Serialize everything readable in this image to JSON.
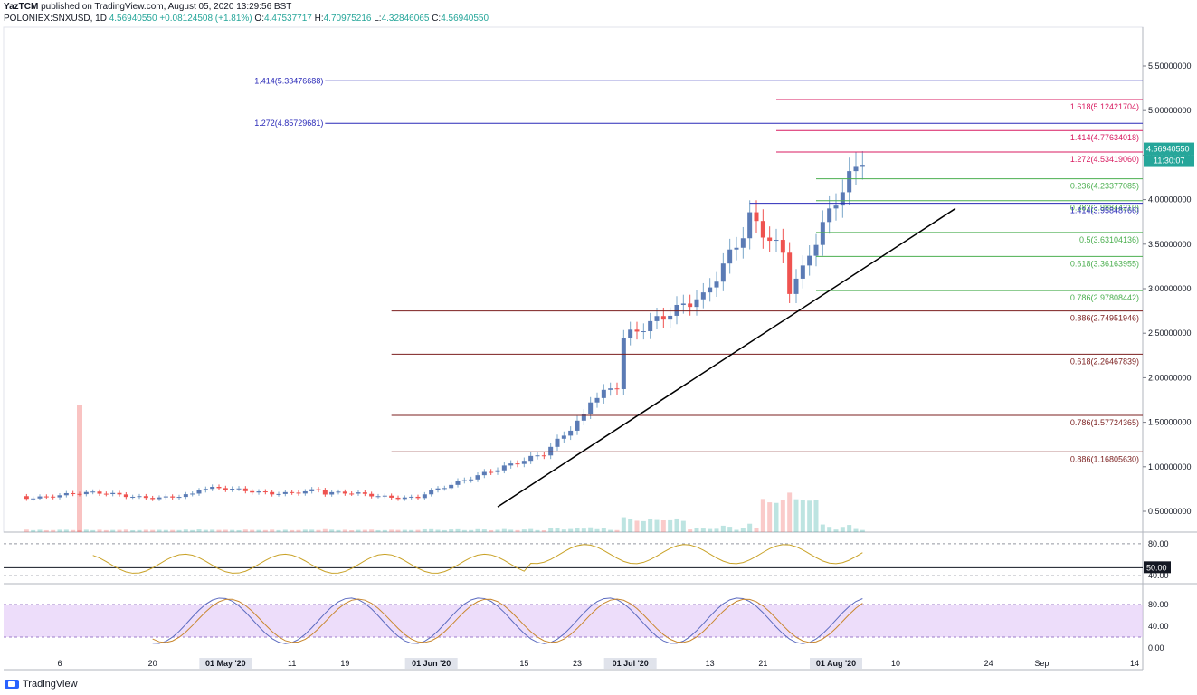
{
  "header": {
    "author": "YazTCM",
    "published": "published on TradingView.com, August 05, 2020 13:29:56 BST",
    "symbol": "POLONIEX:SNXUSD, 1D",
    "last": "4.56940550",
    "change": "+0.08124508 (+1.81%)",
    "o_label": "O:",
    "o": "4.47537717",
    "h_label": "H:",
    "h": "4.70975216",
    "l_label": "L:",
    "l": "4.32846065",
    "c_label": "C:",
    "c": "4.56940550"
  },
  "footer": {
    "brand": "TradingView"
  },
  "colors": {
    "up": "#26a69a",
    "up_body": "#5b7bb5",
    "down": "#ef5350",
    "fib_blue": "#2a2ab8",
    "fib_pink": "#d81b60",
    "fib_green": "#4caf50",
    "fib_brown": "#7b1f1f",
    "rsi": "#c9a227",
    "stoch_k": "#5c6bc0",
    "stoch_d": "#c9872e",
    "stoch_band": "#e1c7f7"
  },
  "chart_data": {
    "type": "candlestick",
    "ylim": [
      0.2,
      5.9
    ],
    "price_ticks": [
      "5.50000000",
      "5.00000000",
      "4.50000000",
      "4.00000000",
      "3.50000000",
      "3.00000000",
      "2.50000000",
      "2.00000000",
      "1.50000000",
      "1.00000000",
      "0.50000000"
    ],
    "price_tick_values": [
      5.5,
      5.0,
      4.5,
      4.0,
      3.5,
      3.0,
      2.5,
      2.0,
      1.5,
      1.0,
      0.5
    ],
    "x_ticks": [
      "6",
      "20",
      "01 May '20",
      "11",
      "19",
      "01 Jun '20",
      "15",
      "23",
      "01 Jul '20",
      "13",
      "21",
      "01 Aug '20",
      "10",
      "24",
      "Sep",
      "14"
    ],
    "x_tick_days": [
      0,
      14,
      25,
      35,
      43,
      56,
      70,
      78,
      86,
      98,
      106,
      117,
      126,
      140,
      148,
      162
    ],
    "current_price_label": "4.56940550",
    "current_price": 4.5694,
    "countdown_label": "11:30:07",
    "candles_ohlc_note": "days since first tick",
    "fib_levels": [
      {
        "label": "1.414(5.33476688)",
        "value": 5.3348,
        "color": "fib_blue",
        "from": 40,
        "to": 163,
        "label_side": "left"
      },
      {
        "label": "1.618(5.12421704)",
        "value": 5.1242,
        "color": "fib_pink",
        "from": 108,
        "to": 163,
        "label_side": "right"
      },
      {
        "label": "1.272(4.85729681)",
        "value": 4.8573,
        "color": "fib_blue",
        "from": 40,
        "to": 163,
        "label_side": "left"
      },
      {
        "label": "1.414(4.77634018)",
        "value": 4.7763,
        "color": "fib_pink",
        "from": 108,
        "to": 163,
        "label_side": "right"
      },
      {
        "label": "1.272(4.53419060)",
        "value": 4.5342,
        "color": "fib_pink",
        "from": 108,
        "to": 163,
        "label_side": "right"
      },
      {
        "label": "0.236(4.23377085)",
        "value": 4.2338,
        "color": "fib_green",
        "from": 114,
        "to": 163,
        "label_side": "right"
      },
      {
        "label": "0.382(3.98844210)",
        "value": 3.9884,
        "color": "fib_green",
        "from": 114,
        "to": 163,
        "label_side": "right"
      },
      {
        "label": "1.414(3.95848766)",
        "value": 3.9585,
        "color": "fib_blue",
        "from": 104,
        "to": 163,
        "label_side": "right"
      },
      {
        "label": "0.5(3.63104136)",
        "value": 3.631,
        "color": "fib_green",
        "from": 114,
        "to": 163,
        "label_side": "right"
      },
      {
        "label": "0.618(3.36163955)",
        "value": 3.3616,
        "color": "fib_green",
        "from": 114,
        "to": 163,
        "label_side": "right"
      },
      {
        "label": "0.786(2.97808442)",
        "value": 2.9781,
        "color": "fib_green",
        "from": 114,
        "to": 163,
        "label_side": "right"
      },
      {
        "label": "0.886(2.74951946)",
        "value": 2.7495,
        "color": "fib_brown",
        "from": 50,
        "to": 163,
        "label_side": "right"
      },
      {
        "label": "0.618(2.26467839)",
        "value": 2.2647,
        "color": "fib_brown",
        "from": 50,
        "to": 163,
        "label_side": "right"
      },
      {
        "label": "0.786(1.57724365)",
        "value": 1.5772,
        "color": "fib_brown",
        "from": 50,
        "to": 163,
        "label_side": "right"
      },
      {
        "label": "0.886(1.16805630)",
        "value": 1.1681,
        "color": "fib_brown",
        "from": 50,
        "to": 163,
        "label_side": "right"
      }
    ],
    "trendline": {
      "from": [
        66,
        0.55
      ],
      "to": [
        135,
        3.9
      ]
    },
    "rsi": {
      "ticks": [
        "80.00",
        "50.00",
        "40.00"
      ],
      "tick_values": [
        80,
        50,
        40
      ],
      "current_label": "50.00"
    },
    "stoch": {
      "ticks": [
        "80.00",
        "40.00",
        "0.00"
      ],
      "tick_values": [
        80,
        40,
        0
      ]
    }
  }
}
